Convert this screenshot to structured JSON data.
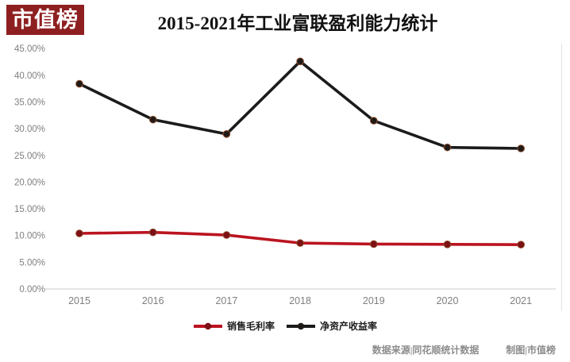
{
  "logo": {
    "text": "市值榜",
    "bg_color": "#8e1f20",
    "text_color": "#ffffff"
  },
  "title": "2015-2021年工业富联盈利能力统计",
  "footer": {
    "source": "数据来源|同花顺统计数据",
    "credit": "制图|市值榜"
  },
  "chart_data": {
    "type": "line",
    "title": "2015-2021年工业富联盈利能力统计",
    "categories": [
      "2015",
      "2016",
      "2017",
      "2018",
      "2019",
      "2020",
      "2021"
    ],
    "series": [
      {
        "name": "销售毛利率",
        "color": "#bb1420",
        "marker_color": "#7e1016",
        "values": [
          10.4,
          10.6,
          10.1,
          8.6,
          8.4,
          8.35,
          8.3
        ]
      },
      {
        "name": "净资产收益率",
        "color": "#1b1b1b",
        "marker_color": "#1f1a17",
        "values": [
          38.4,
          31.7,
          29.0,
          42.6,
          31.5,
          26.5,
          26.3
        ]
      }
    ],
    "ylim": [
      0,
      45
    ],
    "ytick_step": 5,
    "ytick_labels": [
      "0.00%",
      "5.00%",
      "10.00%",
      "15.00%",
      "20.00%",
      "25.00%",
      "30.00%",
      "35.00%",
      "40.00%",
      "45.00%"
    ],
    "xlabel": "",
    "ylabel": "",
    "grid": false,
    "legend_position": "bottom",
    "axis_color": "#cccccc",
    "tick_label_color": "#7f7f7f"
  }
}
